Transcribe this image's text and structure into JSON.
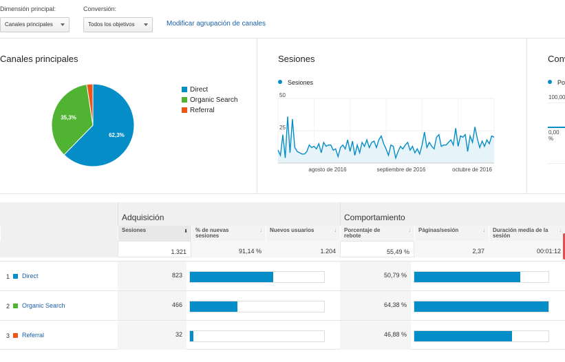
{
  "controls": {
    "dimension_label": "Dimensión principal:",
    "dimension_value": "Canales principales",
    "conversion_label": "Conversión:",
    "conversion_value": "Todos los objetivos",
    "modify_link": "Modificar agrupación de canales"
  },
  "panels": {
    "channels_title": "Canales principales",
    "sessions_title": "Sesiones",
    "conversions_title": "Conv",
    "sessions_legend": "Sesiones",
    "conversions_legend": "Po",
    "conv_tick_top": "100,00",
    "conv_tick_bottom": "0,00 %"
  },
  "colors": {
    "direct": "#058dc7",
    "organic": "#50b432",
    "referral": "#ed561b",
    "link": "#1a5fa8"
  },
  "chart_data": [
    {
      "type": "pie",
      "title": "Canales principales",
      "categories": [
        "Direct",
        "Organic Search",
        "Referral"
      ],
      "values": [
        62.3,
        35.3,
        2.4
      ],
      "slice_labels": [
        "62,3%",
        "35,3%",
        ""
      ],
      "legend": "right"
    },
    {
      "type": "area",
      "title": "Sesiones",
      "series": [
        {
          "name": "Sesiones",
          "values": [
            10,
            6,
            22,
            4,
            36,
            8,
            34,
            12,
            9,
            8,
            7,
            7,
            9,
            14,
            12,
            13,
            11,
            15,
            8,
            16,
            13,
            14,
            14,
            10,
            11,
            5,
            12,
            14,
            11,
            18,
            9,
            17,
            6,
            14,
            8,
            16,
            13,
            18,
            12,
            16,
            17,
            12,
            18,
            21,
            15,
            11,
            6,
            14,
            13,
            4,
            9,
            13,
            11,
            14,
            16,
            10,
            13,
            8,
            11,
            7,
            14,
            24,
            12,
            16,
            13,
            11,
            20,
            22,
            13,
            14,
            14,
            16,
            18,
            14,
            27,
            13,
            21,
            20,
            22,
            9,
            21,
            16,
            28,
            19,
            12,
            17,
            13,
            18,
            15,
            21,
            20
          ]
        }
      ],
      "y_ticks": [
        "50",
        "25"
      ],
      "ylim": [
        0,
        50
      ],
      "x_ticks": [
        "agosto de 2016",
        "septiembre de 2016",
        "octubre de 2016"
      ],
      "grid": true,
      "legend": "top-left"
    }
  ],
  "table": {
    "group_acq": "Adquisición",
    "group_beh": "Comportamiento",
    "headers": {
      "sessions": "Sesiones",
      "pct_new": "% de nuevas sesiones",
      "new_users": "Nuevos usuarios",
      "bounce": "Porcentaje de rebote",
      "pages": "Páginas/sesión",
      "duration": "Duración media de la sesión"
    },
    "totals": {
      "sessions": "1.321",
      "pct_new": "91,14 %",
      "new_users": "1.204",
      "bounce": "55,49 %",
      "pages": "2,37",
      "duration": "00:01:12"
    },
    "rows": [
      {
        "num": "1",
        "name": "Direct",
        "sessions": "823",
        "sessions_share": 0.623,
        "bounce": "50,79 %",
        "bounce_share": 0.79
      },
      {
        "num": "2",
        "name": "Organic Search",
        "sessions": "466",
        "sessions_share": 0.353,
        "bounce": "64,38 %",
        "bounce_share": 1.0
      },
      {
        "num": "3",
        "name": "Referral",
        "sessions": "32",
        "sessions_share": 0.024,
        "bounce": "46,88 %",
        "bounce_share": 0.728
      }
    ]
  }
}
